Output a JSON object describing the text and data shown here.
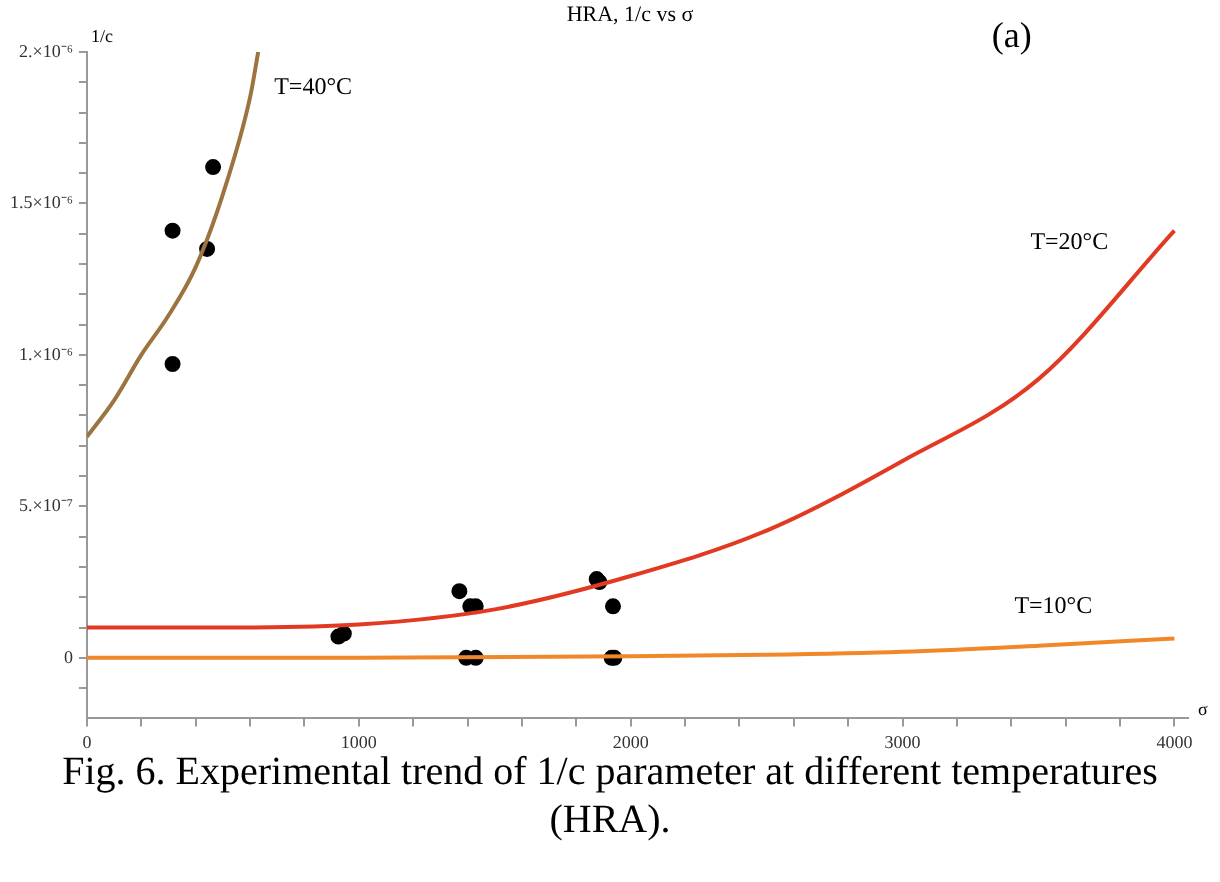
{
  "chart_data": {
    "type": "line",
    "title": "HRA, 1/c vs σ",
    "xlabel": "σ",
    "ylabel": "1/c",
    "annotations": [
      "(a)",
      "Fig. 6. Experimental trend of 1/c parameter at different temperatures (HRA)."
    ],
    "xlim": [
      0,
      4050
    ],
    "ylim": [
      -2e-07,
      2e-06
    ],
    "xticks": [
      0,
      {
        "value": 200,
        "label": null
      },
      {
        "value": 400,
        "label": null
      },
      {
        "value": 600,
        "label": null
      },
      {
        "value": 800,
        "label": null
      },
      1000,
      {
        "value": 1200,
        "label": null
      },
      {
        "value": 1400,
        "label": null
      },
      {
        "value": 1600,
        "label": null
      },
      {
        "value": 1800,
        "label": null
      },
      2000,
      {
        "value": 2200,
        "label": null
      },
      {
        "value": 2400,
        "label": null
      },
      {
        "value": 2600,
        "label": null
      },
      {
        "value": 2800,
        "label": null
      },
      3000,
      {
        "value": 3200,
        "label": null
      },
      {
        "value": 3400,
        "label": null
      },
      {
        "value": 3600,
        "label": null
      },
      {
        "value": 3800,
        "label": null
      },
      4000
    ],
    "yticks": [
      {
        "value": -1e-07,
        "label": null
      },
      0,
      {
        "value": 1e-07,
        "label": null
      },
      {
        "value": 2e-07,
        "label": null
      },
      {
        "value": 3e-07,
        "label": null
      },
      {
        "value": 4e-07,
        "label": null
      },
      {
        "value": 5e-07,
        "label": "5.×10⁻⁷"
      },
      {
        "value": 6e-07,
        "label": null
      },
      {
        "value": 7e-07,
        "label": null
      },
      {
        "value": 8e-07,
        "label": null
      },
      {
        "value": 9e-07,
        "label": null
      },
      {
        "value": 1e-06,
        "label": "1.×10⁻⁶"
      },
      {
        "value": 1.1e-06,
        "label": null
      },
      {
        "value": 1.2e-06,
        "label": null
      },
      {
        "value": 1.3e-06,
        "label": null
      },
      {
        "value": 1.4e-06,
        "label": null
      },
      {
        "value": 1.5e-06,
        "label": "1.5×10⁻⁶"
      },
      {
        "value": 1.6e-06,
        "label": null
      },
      {
        "value": 1.7e-06,
        "label": null
      },
      {
        "value": 1.8e-06,
        "label": null
      },
      {
        "value": 1.9e-06,
        "label": null
      },
      {
        "value": 2e-06,
        "label": "2.×10⁻⁶"
      }
    ],
    "grid": false,
    "legend": false,
    "series": [
      {
        "name": "T=40°C",
        "color": "#9c7440",
        "marker": "none",
        "x": [
          0,
          100,
          200,
          300,
          400,
          500,
          600,
          630
        ],
        "values": [
          7.3e-07,
          8.5e-07,
          1e-06,
          1.13e-06,
          1.29e-06,
          1.53e-06,
          1.85e-06,
          2e-06
        ]
      },
      {
        "name": "T=20°C",
        "color": "#e23a22",
        "marker": "none",
        "x": [
          0,
          500,
          1000,
          1500,
          2000,
          2500,
          3000,
          3500,
          4000
        ],
        "values": [
          1e-07,
          1e-07,
          1.1e-07,
          1.6e-07,
          2.7e-07,
          4.2e-07,
          6.5e-07,
          9.2e-07,
          1.41e-06
        ]
      },
      {
        "name": "T=10°C",
        "color": "#f0882a",
        "marker": "none",
        "x": [
          0,
          1000,
          2000,
          2500,
          3000,
          3500,
          4000
        ],
        "values": [
          0,
          0,
          5e-09,
          1e-08,
          2e-08,
          4e-08,
          6.4e-08
        ]
      },
      {
        "type": "scatter",
        "color": "#000000",
        "marker": "circle",
        "x": [
          315,
          442,
          464,
          315,
          925,
          945,
          1370,
          1410,
          1430,
          1395,
          1430,
          1875,
          1885,
          1935,
          1930,
          1940
        ],
        "values": [
          1.41e-06,
          1.35e-06,
          1.62e-06,
          9.7e-07,
          7e-08,
          8e-08,
          2.2e-07,
          1.7e-07,
          1.7e-07,
          0,
          0,
          2.6e-07,
          2.5e-07,
          1.7e-07,
          0,
          0
        ]
      }
    ]
  }
}
